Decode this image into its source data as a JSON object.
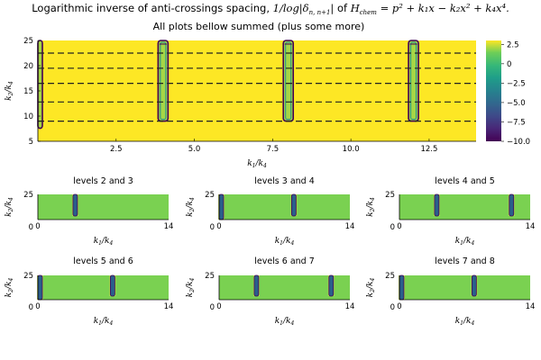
{
  "figure": {
    "title_prefix": "Logarithmic inverse of anti-crossings spacing,",
    "title_math": "1/log|δ",
    "title_sub": "n, n+1",
    "title_math_end": "|",
    "title_of": "of",
    "title_H": "H",
    "title_H_sub": "chem",
    "title_eq": "= p² + k₁x − k₂x² + k₄x⁴.",
    "subtitle": "All plots bellow summed (plus some more)"
  },
  "chart_data": [
    {
      "type": "heatmap",
      "id": "summed",
      "title": "All plots bellow summed (plus some more)",
      "xlabel": "k1/k4",
      "ylabel": "k2/k4",
      "xlim": [
        0,
        14
      ],
      "ylim": [
        5,
        25
      ],
      "xticks": [
        2.5,
        5.0,
        7.5,
        10.0,
        12.5
      ],
      "xtick_labels": [
        "2.5",
        "5.0",
        "7.5",
        "10.0",
        "12.5"
      ],
      "yticks": [
        5,
        10,
        15,
        20,
        25
      ],
      "ytick_labels": [
        "5",
        "10",
        "15",
        "20",
        "25"
      ],
      "dashed_levels_y": [
        9,
        12.8,
        16.5,
        19.5,
        22.5
      ],
      "resonance_columns_x": [
        0.2,
        4.0,
        8.0,
        12.0
      ],
      "background_value": 3,
      "colorbar": {
        "range": [
          -10,
          3
        ],
        "ticks": [
          2.5,
          0,
          -2.5,
          -5.0,
          -7.5,
          -10.0
        ],
        "tick_labels": [
          "2.5",
          "0",
          "−2.5",
          "−5.0",
          "−7.5",
          "−10.0"
        ],
        "colormap": "viridis"
      }
    },
    {
      "type": "heatmap",
      "id": "levels-2-3",
      "title": "levels 2 and 3",
      "xlabel": "k1/k4",
      "ylabel": "k2/k4",
      "xlim": [
        0,
        14
      ],
      "ylim": [
        0,
        25
      ],
      "xtick_labels": [
        "0",
        "14"
      ],
      "ytick_labels": [
        "0",
        "25"
      ],
      "resonance_columns_x": [
        4.0
      ]
    },
    {
      "type": "heatmap",
      "id": "levels-3-4",
      "title": "levels 3 and 4",
      "xlabel": "k1/k4",
      "ylabel": "k2/k4",
      "xlim": [
        0,
        14
      ],
      "ylim": [
        0,
        25
      ],
      "xtick_labels": [
        "0",
        "14"
      ],
      "ytick_labels": [
        "0",
        "25"
      ],
      "resonance_columns_x": [
        0.2,
        8.0
      ]
    },
    {
      "type": "heatmap",
      "id": "levels-4-5",
      "title": "levels 4 and 5",
      "xlabel": "k1/k4",
      "ylabel": "k2/k4",
      "xlim": [
        0,
        14
      ],
      "ylim": [
        0,
        25
      ],
      "xtick_labels": [
        "0",
        "14"
      ],
      "ytick_labels": [
        "0",
        "25"
      ],
      "resonance_columns_x": [
        4.0,
        12.0
      ]
    },
    {
      "type": "heatmap",
      "id": "levels-5-6",
      "title": "levels 5 and 6",
      "xlabel": "k1/k4",
      "ylabel": "k2/k4",
      "xlim": [
        0,
        14
      ],
      "ylim": [
        0,
        25
      ],
      "xtick_labels": [
        "0",
        "14"
      ],
      "ytick_labels": [
        "0",
        "25"
      ],
      "resonance_columns_x": [
        0.2,
        8.0
      ]
    },
    {
      "type": "heatmap",
      "id": "levels-6-7",
      "title": "levels 6 and 7",
      "xlabel": "k1/k4",
      "ylabel": "k2/k4",
      "xlim": [
        0,
        14
      ],
      "ylim": [
        0,
        25
      ],
      "xtick_labels": [
        "0",
        "14"
      ],
      "ytick_labels": [
        "0",
        "25"
      ],
      "resonance_columns_x": [
        4.0,
        12.0
      ]
    },
    {
      "type": "heatmap",
      "id": "levels-7-8",
      "title": "levels 7 and 8",
      "xlabel": "k1/k4",
      "ylabel": "k2/k4",
      "xlim": [
        0,
        14
      ],
      "ylim": [
        0,
        25
      ],
      "xtick_labels": [
        "0",
        "14"
      ],
      "ytick_labels": [
        "0",
        "25"
      ],
      "resonance_columns_x": [
        0.2,
        8.0
      ]
    }
  ],
  "colors": {
    "main_background": "#fde725",
    "small_background": "#7ad151",
    "contour_dark": "#440154",
    "contour_teal": "#21918c",
    "contour_green": "#5ec962",
    "dashes": "#222222"
  }
}
